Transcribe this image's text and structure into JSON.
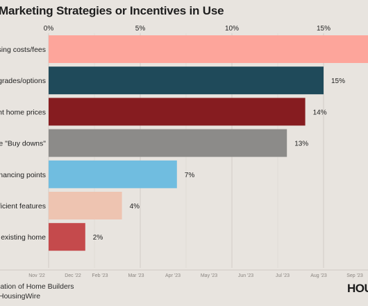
{
  "chart_data": {
    "type": "bar",
    "orientation": "horizontal",
    "title": "Marketing Strategies or Incentives in Use",
    "categories": [
      "Paying closing costs/fees",
      "Upgrades/options",
      "Discount home prices",
      "Mortgage rate \"Buy downs\"",
      "Paying financing points",
      "Energy efficient features",
      "Help sell existing home"
    ],
    "category_labels_visible": [
      "osing costs/fees",
      "ogrades/options",
      "unt home prices",
      "ate \"Buy downs\"",
      "financing points",
      "fficient features",
      "ell existing home"
    ],
    "values": [
      18,
      15,
      14,
      13,
      7,
      4,
      2
    ],
    "value_labels": [
      "",
      "15%",
      "14%",
      "13%",
      "7%",
      "4%",
      "2%"
    ],
    "colors": [
      "#fda59b",
      "#1f4a5a",
      "#861c20",
      "#8c8b89",
      "#70bde0",
      "#eec4b1",
      "#c54a4c"
    ],
    "x_ticks": [
      "0%",
      "5%",
      "10%",
      "15%"
    ],
    "x_tick_values": [
      0,
      5,
      10,
      15
    ],
    "xlim": [
      0,
      18
    ],
    "bottom_axis_labels": [
      "Nov '22",
      "Dec '22",
      "Feb '23",
      "Mar '23",
      "Apr '23",
      "May '23",
      "Jun '23",
      "Jul '23",
      "Aug '23",
      "Sep '23"
    ],
    "grid": true
  },
  "footer": {
    "source": "iation of Home Builders",
    "credit": "HousingWire",
    "logo": "HOU"
  }
}
